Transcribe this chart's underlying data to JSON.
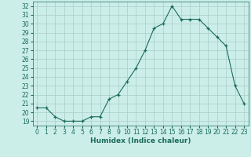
{
  "x": [
    0,
    1,
    2,
    3,
    4,
    5,
    6,
    7,
    8,
    9,
    10,
    11,
    12,
    13,
    14,
    15,
    16,
    17,
    18,
    19,
    20,
    21,
    22,
    23
  ],
  "y": [
    20.5,
    20.5,
    19.5,
    19.0,
    19.0,
    19.0,
    19.5,
    19.5,
    21.5,
    22.0,
    23.5,
    25.0,
    27.0,
    29.5,
    30.0,
    32.0,
    30.5,
    30.5,
    30.5,
    29.5,
    28.5,
    27.5,
    23.0,
    21.0
  ],
  "xlabel": "Humidex (Indice chaleur)",
  "xlim": [
    -0.5,
    23.5
  ],
  "ylim": [
    18.5,
    32.5
  ],
  "yticks": [
    19,
    20,
    21,
    22,
    23,
    24,
    25,
    26,
    27,
    28,
    29,
    30,
    31,
    32
  ],
  "xticks": [
    0,
    1,
    2,
    3,
    4,
    5,
    6,
    7,
    8,
    9,
    10,
    11,
    12,
    13,
    14,
    15,
    16,
    17,
    18,
    19,
    20,
    21,
    22,
    23
  ],
  "line_color": "#1a6b5a",
  "bg_color": "#cceee8",
  "grid_color": "#aaccc6",
  "label_color": "#1a6b5a",
  "tick_fontsize": 5.5,
  "xlabel_fontsize": 6.5
}
